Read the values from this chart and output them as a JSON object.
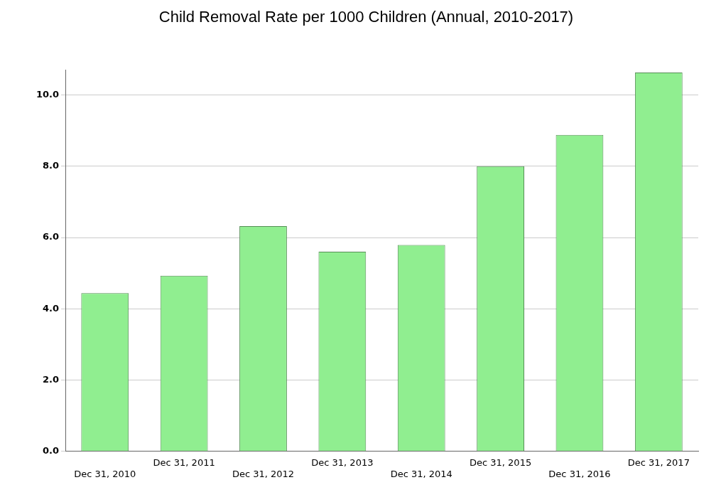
{
  "chart_data": {
    "type": "bar",
    "title": "Child Removal Rate per 1000 Children (Annual, 2010-2017)",
    "categories": [
      "Dec 31, 2010",
      "Dec 31, 2011",
      "Dec 31, 2012",
      "Dec 31, 2013",
      "Dec 31, 2014",
      "Dec 31, 2015",
      "Dec 31, 2016",
      "Dec 31, 2017"
    ],
    "values": [
      4.44,
      4.93,
      6.32,
      5.6,
      5.79,
      8.0,
      8.88,
      10.63
    ],
    "color": "#90ee90",
    "ylim": [
      0,
      10.7
    ],
    "yticks": [
      {
        "value": 0,
        "label": "0.0"
      },
      {
        "value": 2,
        "label": "2.0"
      },
      {
        "value": 4,
        "label": "4.0"
      },
      {
        "value": 6,
        "label": "6.0"
      },
      {
        "value": 8,
        "label": "8.0"
      },
      {
        "value": 10,
        "label": "10.0"
      }
    ],
    "grid": "y",
    "legend": false
  }
}
